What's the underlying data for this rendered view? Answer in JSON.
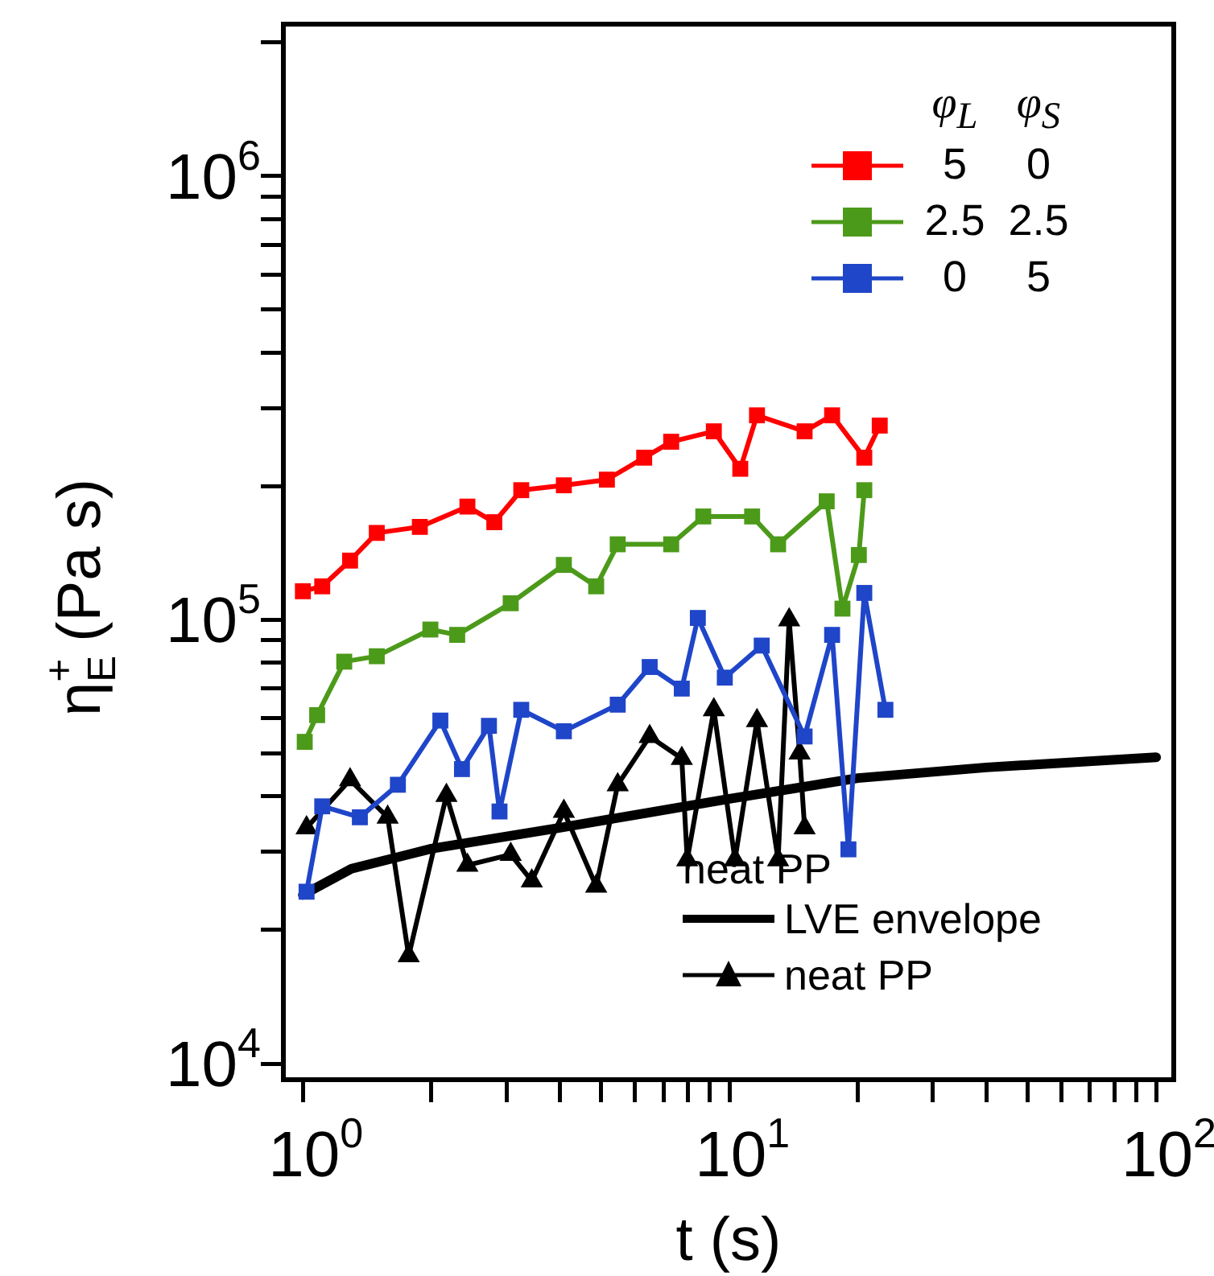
{
  "chart_data": {
    "type": "line",
    "xlabel": "t (s)",
    "ylabel": "η$_{E}$$^{+}$ (Pa s)",
    "legend_title": "φ$_{L}$ φ$_{S}$",
    "legend": "right",
    "log": "xy",
    "marker": "square",
    "annotations": [
      "neat PP"
    ],
    "xlim": [
      0.9,
      110
    ],
    "ylim": [
      9200,
      2200000
    ],
    "xticks": [
      {
        "value": 1,
        "label": "10$^{0}$"
      },
      {
        "value": 2,
        "label": null
      },
      {
        "value": 3,
        "label": null
      },
      {
        "value": 4,
        "label": null
      },
      {
        "value": 5,
        "label": null
      },
      {
        "value": 6,
        "label": null
      },
      {
        "value": 7,
        "label": null
      },
      {
        "value": 8,
        "label": null
      },
      {
        "value": 9,
        "label": null
      },
      {
        "value": 10,
        "label": "10$^{1}$"
      },
      {
        "value": 20,
        "label": null
      },
      {
        "value": 30,
        "label": null
      },
      {
        "value": 40,
        "label": null
      },
      {
        "value": 50,
        "label": null
      },
      {
        "value": 60,
        "label": null
      },
      {
        "value": 70,
        "label": null
      },
      {
        "value": 80,
        "label": null
      },
      {
        "value": 90,
        "label": null
      },
      {
        "value": 100,
        "label": "10$^{2}$"
      }
    ],
    "yticks": [
      {
        "value": 10000,
        "label": "10$^{4}$"
      },
      {
        "value": 20000,
        "label": null
      },
      {
        "value": 30000,
        "label": null
      },
      {
        "value": 40000,
        "label": null
      },
      {
        "value": 50000,
        "label": null
      },
      {
        "value": 60000,
        "label": null
      },
      {
        "value": 70000,
        "label": null
      },
      {
        "value": 80000,
        "label": null
      },
      {
        "value": 90000,
        "label": null
      },
      {
        "value": 100000,
        "label": "10$^{5}$"
      },
      {
        "value": 200000,
        "label": null
      },
      {
        "value": 300000,
        "label": null
      },
      {
        "value": 400000,
        "label": null
      },
      {
        "value": 500000,
        "label": null
      },
      {
        "value": 600000,
        "label": null
      },
      {
        "value": 700000,
        "label": null
      },
      {
        "value": 800000,
        "label": null
      },
      {
        "value": 900000,
        "label": null
      },
      {
        "value": 1000000,
        "label": "10$^{6}$"
      },
      {
        "value": 2000000,
        "label": null
      }
    ],
    "series": [
      {
        "name": "5 0",
        "color": "#ff0000",
        "x": [
          1.0,
          1.11,
          1.29,
          1.49,
          1.88,
          2.43,
          2.81,
          3.25,
          4.09,
          5.16,
          6.31,
          7.3,
          9.19,
          10.6,
          11.6,
          15.0,
          17.4,
          20.7,
          22.5
        ],
        "values": [
          116000,
          119000,
          136000,
          157000,
          162000,
          180000,
          166000,
          196000,
          201000,
          207000,
          232000,
          252000,
          266000,
          219000,
          289000,
          266000,
          289000,
          232000,
          274000
        ]
      },
      {
        "name": "2.5 2.5",
        "color": "#4c9a1a",
        "x": [
          1.01,
          1.08,
          1.25,
          1.49,
          1.99,
          2.3,
          3.07,
          4.09,
          4.87,
          5.47,
          7.3,
          8.68,
          11.3,
          13.0,
          16.9,
          18.4,
          20.1,
          20.7
        ],
        "values": [
          53100,
          61000,
          80500,
          82800,
          95100,
          92500,
          109000,
          133000,
          119000,
          148000,
          148000,
          171000,
          171000,
          148000,
          185000,
          106000,
          140000,
          196000
        ]
      },
      {
        "name": "0 5",
        "color": "#1f45c8",
        "x": [
          1.02,
          1.11,
          1.36,
          1.67,
          2.1,
          2.36,
          2.73,
          2.89,
          3.25,
          4.09,
          5.47,
          6.5,
          7.73,
          8.43,
          9.75,
          11.9,
          15.0,
          17.4,
          19.0,
          20.7,
          23.2
        ],
        "values": [
          24400,
          38000,
          35900,
          42500,
          59300,
          46100,
          57700,
          37000,
          62700,
          56100,
          64400,
          78300,
          70000,
          101000,
          74100,
          87500,
          54600,
          92500,
          30400,
          115000,
          62700
        ]
      },
      {
        "name": "LVE envelope",
        "color": "#000000",
        "marker": "none",
        "x": [
          1.0,
          1.3,
          2,
          4,
          10,
          20,
          40,
          100
        ],
        "values": [
          24000,
          27500,
          30500,
          34000,
          39500,
          44000,
          46500,
          49000
        ]
      },
      {
        "name": "neat PP",
        "color": "#000000",
        "marker": "triangle",
        "x": [
          1.02,
          1.29,
          1.58,
          1.77,
          2.17,
          2.43,
          3.07,
          3.44,
          4.09,
          4.87,
          5.47,
          6.5,
          7.73,
          7.96,
          9.19,
          10.3,
          11.6,
          13.0,
          13.8,
          14.6,
          15.0
        ],
        "values": [
          34000,
          43600,
          35900,
          17500,
          40200,
          28000,
          29600,
          25800,
          37000,
          25100,
          42500,
          54600,
          48700,
          28800,
          62700,
          28800,
          59300,
          28800,
          100000,
          50100,
          34000
        ]
      }
    ]
  }
}
